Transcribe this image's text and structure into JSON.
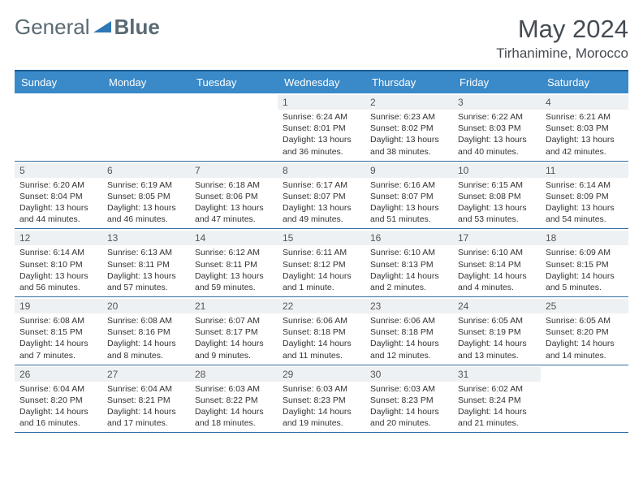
{
  "logo": {
    "text1": "General",
    "text2": "Blue"
  },
  "title": "May 2024",
  "location": "Tirhanimine, Morocco",
  "colors": {
    "header_bg": "#3a8ac9",
    "header_text": "#ffffff",
    "border": "#2f6ea3",
    "daynum_bg": "#eef1f3",
    "logo_color": "#5a6a74",
    "logo_accent": "#2d78b5"
  },
  "day_headers": [
    "Sunday",
    "Monday",
    "Tuesday",
    "Wednesday",
    "Thursday",
    "Friday",
    "Saturday"
  ],
  "weeks": [
    [
      {
        "day": "",
        "sunrise": "",
        "sunset": "",
        "daylight": ""
      },
      {
        "day": "",
        "sunrise": "",
        "sunset": "",
        "daylight": ""
      },
      {
        "day": "",
        "sunrise": "",
        "sunset": "",
        "daylight": ""
      },
      {
        "day": "1",
        "sunrise": "Sunrise: 6:24 AM",
        "sunset": "Sunset: 8:01 PM",
        "daylight": "Daylight: 13 hours and 36 minutes."
      },
      {
        "day": "2",
        "sunrise": "Sunrise: 6:23 AM",
        "sunset": "Sunset: 8:02 PM",
        "daylight": "Daylight: 13 hours and 38 minutes."
      },
      {
        "day": "3",
        "sunrise": "Sunrise: 6:22 AM",
        "sunset": "Sunset: 8:03 PM",
        "daylight": "Daylight: 13 hours and 40 minutes."
      },
      {
        "day": "4",
        "sunrise": "Sunrise: 6:21 AM",
        "sunset": "Sunset: 8:03 PM",
        "daylight": "Daylight: 13 hours and 42 minutes."
      }
    ],
    [
      {
        "day": "5",
        "sunrise": "Sunrise: 6:20 AM",
        "sunset": "Sunset: 8:04 PM",
        "daylight": "Daylight: 13 hours and 44 minutes."
      },
      {
        "day": "6",
        "sunrise": "Sunrise: 6:19 AM",
        "sunset": "Sunset: 8:05 PM",
        "daylight": "Daylight: 13 hours and 46 minutes."
      },
      {
        "day": "7",
        "sunrise": "Sunrise: 6:18 AM",
        "sunset": "Sunset: 8:06 PM",
        "daylight": "Daylight: 13 hours and 47 minutes."
      },
      {
        "day": "8",
        "sunrise": "Sunrise: 6:17 AM",
        "sunset": "Sunset: 8:07 PM",
        "daylight": "Daylight: 13 hours and 49 minutes."
      },
      {
        "day": "9",
        "sunrise": "Sunrise: 6:16 AM",
        "sunset": "Sunset: 8:07 PM",
        "daylight": "Daylight: 13 hours and 51 minutes."
      },
      {
        "day": "10",
        "sunrise": "Sunrise: 6:15 AM",
        "sunset": "Sunset: 8:08 PM",
        "daylight": "Daylight: 13 hours and 53 minutes."
      },
      {
        "day": "11",
        "sunrise": "Sunrise: 6:14 AM",
        "sunset": "Sunset: 8:09 PM",
        "daylight": "Daylight: 13 hours and 54 minutes."
      }
    ],
    [
      {
        "day": "12",
        "sunrise": "Sunrise: 6:14 AM",
        "sunset": "Sunset: 8:10 PM",
        "daylight": "Daylight: 13 hours and 56 minutes."
      },
      {
        "day": "13",
        "sunrise": "Sunrise: 6:13 AM",
        "sunset": "Sunset: 8:11 PM",
        "daylight": "Daylight: 13 hours and 57 minutes."
      },
      {
        "day": "14",
        "sunrise": "Sunrise: 6:12 AM",
        "sunset": "Sunset: 8:11 PM",
        "daylight": "Daylight: 13 hours and 59 minutes."
      },
      {
        "day": "15",
        "sunrise": "Sunrise: 6:11 AM",
        "sunset": "Sunset: 8:12 PM",
        "daylight": "Daylight: 14 hours and 1 minute."
      },
      {
        "day": "16",
        "sunrise": "Sunrise: 6:10 AM",
        "sunset": "Sunset: 8:13 PM",
        "daylight": "Daylight: 14 hours and 2 minutes."
      },
      {
        "day": "17",
        "sunrise": "Sunrise: 6:10 AM",
        "sunset": "Sunset: 8:14 PM",
        "daylight": "Daylight: 14 hours and 4 minutes."
      },
      {
        "day": "18",
        "sunrise": "Sunrise: 6:09 AM",
        "sunset": "Sunset: 8:15 PM",
        "daylight": "Daylight: 14 hours and 5 minutes."
      }
    ],
    [
      {
        "day": "19",
        "sunrise": "Sunrise: 6:08 AM",
        "sunset": "Sunset: 8:15 PM",
        "daylight": "Daylight: 14 hours and 7 minutes."
      },
      {
        "day": "20",
        "sunrise": "Sunrise: 6:08 AM",
        "sunset": "Sunset: 8:16 PM",
        "daylight": "Daylight: 14 hours and 8 minutes."
      },
      {
        "day": "21",
        "sunrise": "Sunrise: 6:07 AM",
        "sunset": "Sunset: 8:17 PM",
        "daylight": "Daylight: 14 hours and 9 minutes."
      },
      {
        "day": "22",
        "sunrise": "Sunrise: 6:06 AM",
        "sunset": "Sunset: 8:18 PM",
        "daylight": "Daylight: 14 hours and 11 minutes."
      },
      {
        "day": "23",
        "sunrise": "Sunrise: 6:06 AM",
        "sunset": "Sunset: 8:18 PM",
        "daylight": "Daylight: 14 hours and 12 minutes."
      },
      {
        "day": "24",
        "sunrise": "Sunrise: 6:05 AM",
        "sunset": "Sunset: 8:19 PM",
        "daylight": "Daylight: 14 hours and 13 minutes."
      },
      {
        "day": "25",
        "sunrise": "Sunrise: 6:05 AM",
        "sunset": "Sunset: 8:20 PM",
        "daylight": "Daylight: 14 hours and 14 minutes."
      }
    ],
    [
      {
        "day": "26",
        "sunrise": "Sunrise: 6:04 AM",
        "sunset": "Sunset: 8:20 PM",
        "daylight": "Daylight: 14 hours and 16 minutes."
      },
      {
        "day": "27",
        "sunrise": "Sunrise: 6:04 AM",
        "sunset": "Sunset: 8:21 PM",
        "daylight": "Daylight: 14 hours and 17 minutes."
      },
      {
        "day": "28",
        "sunrise": "Sunrise: 6:03 AM",
        "sunset": "Sunset: 8:22 PM",
        "daylight": "Daylight: 14 hours and 18 minutes."
      },
      {
        "day": "29",
        "sunrise": "Sunrise: 6:03 AM",
        "sunset": "Sunset: 8:23 PM",
        "daylight": "Daylight: 14 hours and 19 minutes."
      },
      {
        "day": "30",
        "sunrise": "Sunrise: 6:03 AM",
        "sunset": "Sunset: 8:23 PM",
        "daylight": "Daylight: 14 hours and 20 minutes."
      },
      {
        "day": "31",
        "sunrise": "Sunrise: 6:02 AM",
        "sunset": "Sunset: 8:24 PM",
        "daylight": "Daylight: 14 hours and 21 minutes."
      },
      {
        "day": "",
        "sunrise": "",
        "sunset": "",
        "daylight": ""
      }
    ]
  ]
}
